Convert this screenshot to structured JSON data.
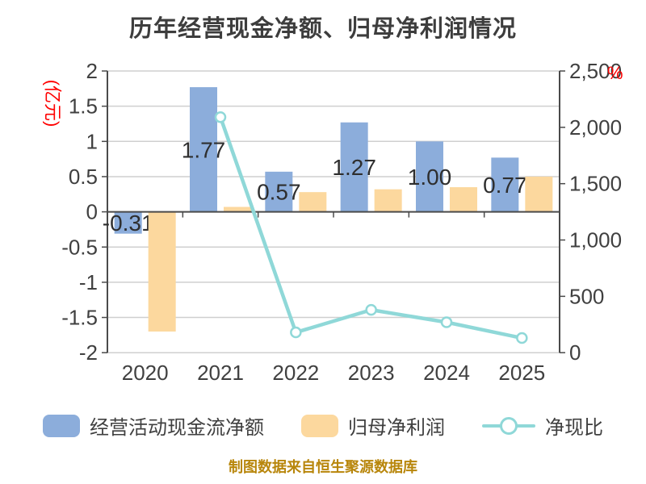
{
  "title": "历年经营现金净额、归母净利润情况",
  "footer": "制图数据来自恒生聚源数据库",
  "left_axis": {
    "unit": "(亿元)",
    "unit_color": "#FF0000",
    "ticks": [
      "2",
      "1.5",
      "1",
      "0.5",
      "0",
      "-0.5",
      "-1",
      "-1.5",
      "-2"
    ]
  },
  "right_axis": {
    "unit": "%",
    "unit_color": "#FF0000",
    "ticks": [
      "0",
      "500",
      "1,000",
      "1,500",
      "2,000",
      "2,500"
    ]
  },
  "chart_data": {
    "type": "combo-bar-line",
    "categories": [
      "2020",
      "2021",
      "2022",
      "2023",
      "2024",
      "2025"
    ],
    "series": [
      {
        "name": "经营活动现金流净额",
        "type": "bar",
        "y_axis": "left",
        "color": "#8CADDB",
        "values": [
          -0.31,
          1.77,
          0.57,
          1.27,
          1.0,
          0.77
        ],
        "labels": [
          "-0.31",
          "1.77",
          "0.57",
          "1.27",
          "1.00",
          "0.77"
        ]
      },
      {
        "name": "归母净利润",
        "type": "bar",
        "y_axis": "left",
        "color": "#FCD89E",
        "values": [
          -1.7,
          0.07,
          0.28,
          0.32,
          0.35,
          0.5
        ]
      },
      {
        "name": "净现比",
        "type": "line",
        "y_axis": "right",
        "color": "#8FD8D8",
        "marker_fill": "#FFFFFF",
        "values": [
          null,
          2090,
          180,
          380,
          270,
          130
        ]
      }
    ],
    "left_ylim": [
      -2,
      2
    ],
    "right_ylim": [
      0,
      2500
    ],
    "grid": true,
    "legend_position": "bottom"
  },
  "colors": {
    "background": "#FFFFFF",
    "axis_text": "#404040",
    "axis_line": "#4A4A4A",
    "grid_line": "#CFCFCF",
    "bar_label": "#2E2E2E",
    "footer_text": "#B8860B"
  }
}
